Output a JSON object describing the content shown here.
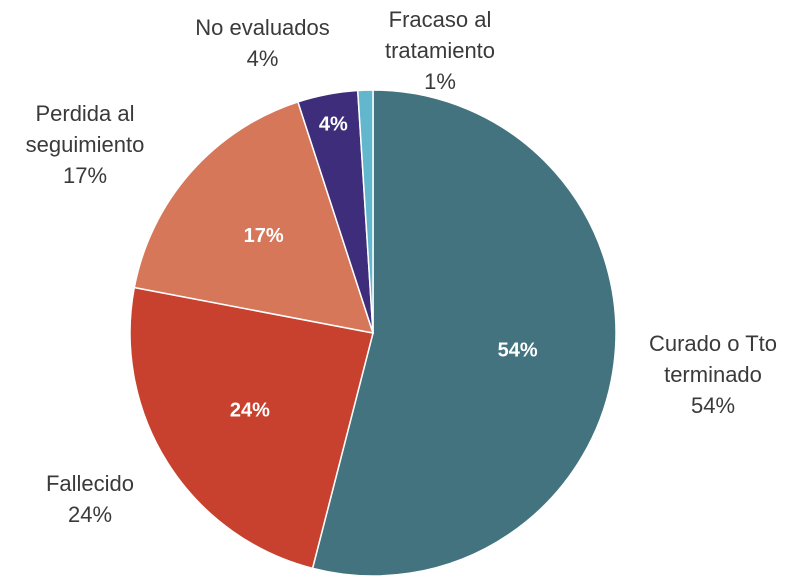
{
  "chart_data": {
    "type": "pie",
    "categories": [
      "Curado o Tto terminado",
      "Fallecido",
      "Perdida al seguimiento",
      "No evaluados",
      "Fracaso al tratamiento"
    ],
    "values": [
      54,
      24,
      17,
      4,
      1
    ],
    "value_labels": [
      "54%",
      "24%",
      "17%",
      "4%",
      "1%"
    ],
    "colors": [
      "#43737f",
      "#c8412f",
      "#d6775a",
      "#3e2d7a",
      "#62b7cc"
    ]
  }
}
